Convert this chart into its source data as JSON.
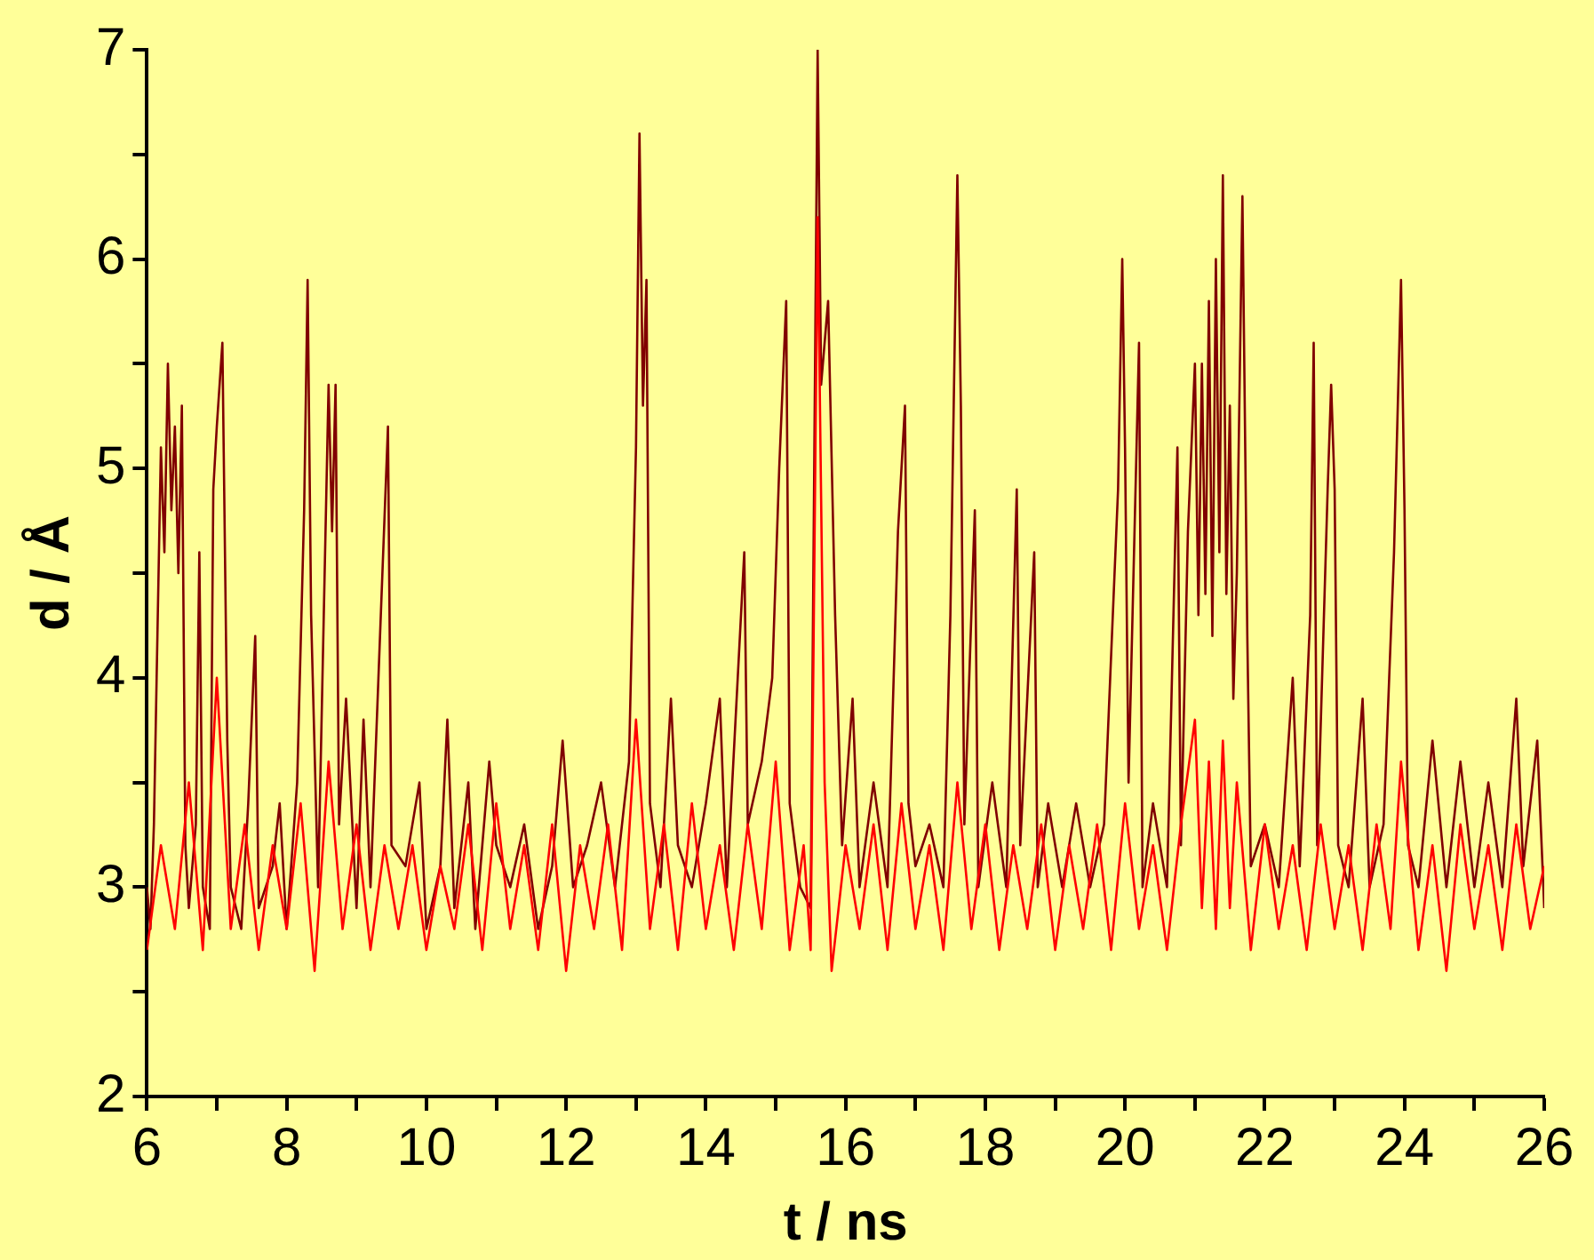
{
  "chart_data": {
    "type": "line",
    "xlabel": "t / ns",
    "ylabel": "d / Å",
    "xlim": [
      6,
      26
    ],
    "ylim": [
      2,
      7
    ],
    "xticks": [
      6,
      {
        "value": 7,
        "label": null
      },
      8,
      {
        "value": 9,
        "label": null
      },
      10,
      {
        "value": 11,
        "label": null
      },
      12,
      {
        "value": 13,
        "label": null
      },
      14,
      {
        "value": 15,
        "label": null
      },
      16,
      {
        "value": 17,
        "label": null
      },
      18,
      {
        "value": 19,
        "label": null
      },
      20,
      {
        "value": 21,
        "label": null
      },
      22,
      {
        "value": 23,
        "label": null
      },
      24,
      {
        "value": 25,
        "label": null
      },
      26
    ],
    "yticks": [
      2,
      {
        "value": 2.5,
        "label": null
      },
      3,
      {
        "value": 3.5,
        "label": null
      },
      4,
      {
        "value": 4.5,
        "label": null
      },
      5,
      {
        "value": 5.5,
        "label": null
      },
      6,
      {
        "value": 6.5,
        "label": null
      },
      7
    ],
    "grid": false,
    "legend": false,
    "marker": "none",
    "line_style": "solid",
    "series": [
      {
        "color": "#800000",
        "x": [
          6.0,
          6.05,
          6.1,
          6.15,
          6.2,
          6.25,
          6.3,
          6.35,
          6.4,
          6.45,
          6.5,
          6.55,
          6.6,
          6.7,
          6.75,
          6.8,
          6.9,
          6.95,
          7.0,
          7.08,
          7.15,
          7.2,
          7.35,
          7.45,
          7.55,
          7.6,
          7.8,
          7.9,
          8.0,
          8.15,
          8.25,
          8.3,
          8.35,
          8.45,
          8.6,
          8.65,
          8.7,
          8.75,
          8.85,
          9.0,
          9.1,
          9.2,
          9.45,
          9.5,
          9.7,
          9.9,
          10.0,
          10.2,
          10.3,
          10.4,
          10.6,
          10.7,
          10.9,
          11.0,
          11.2,
          11.4,
          11.6,
          11.8,
          11.95,
          12.1,
          12.3,
          12.5,
          12.7,
          12.9,
          13.0,
          13.05,
          13.1,
          13.15,
          13.2,
          13.35,
          13.5,
          13.6,
          13.8,
          14.0,
          14.2,
          14.3,
          14.55,
          14.6,
          14.8,
          14.95,
          15.05,
          15.15,
          15.2,
          15.35,
          15.5,
          15.6,
          15.65,
          15.75,
          15.85,
          15.95,
          16.1,
          16.2,
          16.4,
          16.6,
          16.75,
          16.85,
          16.9,
          17.0,
          17.2,
          17.4,
          17.5,
          17.6,
          17.65,
          17.7,
          17.85,
          17.9,
          18.1,
          18.3,
          18.45,
          18.5,
          18.7,
          18.75,
          18.9,
          19.1,
          19.3,
          19.5,
          19.7,
          19.9,
          19.96,
          20.0,
          20.05,
          20.2,
          20.25,
          20.4,
          20.6,
          20.75,
          20.8,
          20.9,
          21.0,
          21.05,
          21.1,
          21.15,
          21.2,
          21.25,
          21.3,
          21.35,
          21.4,
          21.45,
          21.5,
          21.55,
          21.6,
          21.68,
          21.75,
          21.8,
          22.0,
          22.2,
          22.4,
          22.5,
          22.65,
          22.7,
          22.75,
          22.9,
          22.95,
          23.0,
          23.05,
          23.2,
          23.4,
          23.5,
          23.7,
          23.85,
          23.95,
          24.0,
          24.05,
          24.2,
          24.4,
          24.6,
          24.8,
          25.0,
          25.2,
          25.4,
          25.6,
          25.7,
          25.9,
          26.0
        ],
        "values": [
          3.0,
          2.8,
          3.3,
          4.2,
          5.1,
          4.6,
          5.5,
          4.8,
          5.2,
          4.5,
          5.3,
          3.2,
          2.9,
          3.3,
          4.6,
          3.0,
          2.8,
          4.9,
          5.2,
          5.6,
          3.7,
          3.0,
          2.8,
          3.4,
          4.2,
          2.9,
          3.1,
          3.4,
          2.8,
          3.5,
          4.8,
          5.9,
          4.3,
          3.0,
          5.4,
          4.7,
          5.4,
          3.3,
          3.9,
          2.9,
          3.8,
          3.0,
          5.2,
          3.2,
          3.1,
          3.5,
          2.8,
          3.1,
          3.8,
          2.9,
          3.5,
          2.8,
          3.6,
          3.2,
          3.0,
          3.3,
          2.8,
          3.1,
          3.7,
          3.0,
          3.2,
          3.5,
          3.0,
          3.6,
          5.1,
          6.6,
          5.3,
          5.9,
          3.4,
          3.0,
          3.9,
          3.2,
          3.0,
          3.4,
          3.9,
          3.0,
          4.6,
          3.3,
          3.6,
          4.0,
          5.0,
          5.8,
          3.4,
          3.0,
          2.9,
          7.0,
          5.4,
          5.8,
          4.3,
          3.2,
          3.9,
          3.0,
          3.5,
          3.0,
          4.7,
          5.3,
          3.4,
          3.1,
          3.3,
          3.0,
          4.3,
          6.4,
          5.3,
          3.3,
          4.8,
          3.0,
          3.5,
          3.0,
          4.9,
          3.2,
          4.6,
          3.0,
          3.4,
          3.0,
          3.4,
          3.0,
          3.3,
          4.9,
          6.0,
          5.1,
          3.5,
          5.6,
          3.0,
          3.4,
          3.0,
          5.1,
          3.2,
          4.7,
          5.5,
          4.3,
          5.5,
          4.4,
          5.8,
          4.2,
          6.0,
          4.6,
          6.4,
          4.4,
          5.3,
          3.9,
          4.5,
          6.3,
          4.2,
          3.1,
          3.3,
          3.0,
          4.0,
          3.1,
          4.3,
          5.6,
          3.2,
          4.9,
          5.4,
          4.9,
          3.2,
          3.0,
          3.9,
          3.0,
          3.3,
          4.6,
          5.9,
          4.8,
          3.2,
          3.0,
          3.7,
          3.0,
          3.6,
          3.0,
          3.5,
          3.0,
          3.9,
          3.1,
          3.7,
          2.9
        ]
      },
      {
        "color": "#ff0000",
        "x": [
          6.0,
          6.2,
          6.4,
          6.6,
          6.8,
          7.0,
          7.2,
          7.4,
          7.6,
          7.8,
          8.0,
          8.2,
          8.4,
          8.6,
          8.8,
          9.0,
          9.2,
          9.4,
          9.6,
          9.8,
          10.0,
          10.2,
          10.4,
          10.6,
          10.8,
          11.0,
          11.2,
          11.4,
          11.6,
          11.8,
          12.0,
          12.2,
          12.4,
          12.6,
          12.8,
          13.0,
          13.2,
          13.4,
          13.6,
          13.8,
          14.0,
          14.2,
          14.4,
          14.6,
          14.8,
          15.0,
          15.2,
          15.4,
          15.5,
          15.6,
          15.7,
          15.8,
          16.0,
          16.2,
          16.4,
          16.6,
          16.8,
          17.0,
          17.2,
          17.4,
          17.6,
          17.8,
          18.0,
          18.2,
          18.4,
          18.6,
          18.8,
          19.0,
          19.2,
          19.4,
          19.6,
          19.8,
          20.0,
          20.2,
          20.4,
          20.6,
          20.8,
          21.0,
          21.1,
          21.2,
          21.3,
          21.4,
          21.5,
          21.6,
          21.8,
          22.0,
          22.2,
          22.4,
          22.6,
          22.8,
          23.0,
          23.2,
          23.4,
          23.6,
          23.8,
          23.95,
          24.2,
          24.4,
          24.6,
          24.8,
          25.0,
          25.2,
          25.4,
          25.6,
          25.8,
          26.0
        ],
        "values": [
          2.7,
          3.2,
          2.8,
          3.5,
          2.7,
          4.0,
          2.8,
          3.3,
          2.7,
          3.2,
          2.8,
          3.4,
          2.6,
          3.6,
          2.8,
          3.3,
          2.7,
          3.2,
          2.8,
          3.2,
          2.7,
          3.1,
          2.8,
          3.3,
          2.7,
          3.4,
          2.8,
          3.2,
          2.7,
          3.3,
          2.6,
          3.2,
          2.8,
          3.3,
          2.7,
          3.8,
          2.8,
          3.3,
          2.7,
          3.4,
          2.8,
          3.2,
          2.7,
          3.3,
          2.8,
          3.6,
          2.7,
          3.2,
          2.7,
          6.2,
          3.5,
          2.6,
          3.2,
          2.8,
          3.3,
          2.7,
          3.4,
          2.8,
          3.2,
          2.7,
          3.5,
          2.8,
          3.3,
          2.7,
          3.2,
          2.8,
          3.3,
          2.7,
          3.2,
          2.8,
          3.3,
          2.7,
          3.4,
          2.8,
          3.2,
          2.7,
          3.3,
          3.8,
          2.9,
          3.6,
          2.8,
          3.7,
          2.9,
          3.5,
          2.7,
          3.3,
          2.8,
          3.2,
          2.7,
          3.3,
          2.8,
          3.2,
          2.7,
          3.3,
          2.8,
          3.6,
          2.7,
          3.2,
          2.6,
          3.3,
          2.8,
          3.2,
          2.7,
          3.3,
          2.8,
          3.1
        ]
      }
    ]
  }
}
